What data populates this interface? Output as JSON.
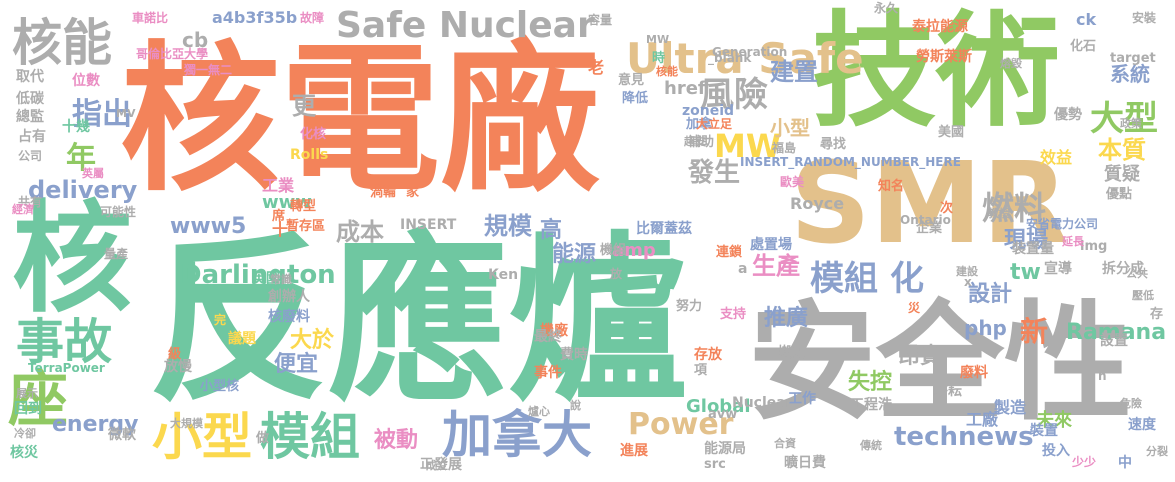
{
  "palette": {
    "orange": "#f3835a",
    "green": "#90c963",
    "teal": "#6fc7a1",
    "tan": "#e3c18b",
    "gray": "#adadad",
    "blue": "#8aa0cc",
    "yellow": "#fbd84e",
    "pink": "#ea8ec3"
  },
  "words": [
    {
      "text": "核電廠",
      "color": "orange"
    },
    {
      "text": "技術",
      "color": "green"
    },
    {
      "text": "反應爐",
      "color": "teal"
    },
    {
      "text": "SMR",
      "color": "tan"
    },
    {
      "text": "安全性",
      "color": "gray"
    },
    {
      "text": "核",
      "color": "teal"
    },
    {
      "text": "核能",
      "color": "gray"
    },
    {
      "text": "Safe Nuclear",
      "color": "gray"
    },
    {
      "text": "Ultra Safe",
      "color": "tan"
    },
    {
      "text": "事故",
      "color": "teal"
    },
    {
      "text": "座",
      "color": "green"
    },
    {
      "text": "小型",
      "color": "yellow"
    },
    {
      "text": "模組",
      "color": "teal"
    },
    {
      "text": "加拿大",
      "color": "blue"
    },
    {
      "text": "模組",
      "color": "blue"
    },
    {
      "text": "化",
      "color": "blue"
    },
    {
      "text": "Darlington",
      "color": "teal"
    },
    {
      "text": "delivery",
      "color": "blue"
    },
    {
      "text": "燃料",
      "color": "gray"
    },
    {
      "text": "大型",
      "color": "green"
    },
    {
      "text": "MW",
      "color": "yellow"
    },
    {
      "text": "Power",
      "color": "tan"
    },
    {
      "text": "technews",
      "color": "blue"
    },
    {
      "text": "energy",
      "color": "blue"
    },
    {
      "text": "指出",
      "color": "blue"
    },
    {
      "text": "年",
      "color": "green"
    },
    {
      "text": "風險",
      "color": "gray"
    },
    {
      "text": "建置",
      "color": "blue"
    },
    {
      "text": "發生",
      "color": "gray"
    },
    {
      "text": "成本",
      "color": "gray"
    },
    {
      "text": "規模",
      "color": "blue"
    },
    {
      "text": "www5",
      "color": "blue"
    },
    {
      "text": "生產",
      "color": "pink"
    },
    {
      "text": "推廣",
      "color": "blue"
    },
    {
      "text": "昂貴",
      "color": "gray"
    },
    {
      "text": "設計",
      "color": "blue"
    },
    {
      "text": "新",
      "color": "orange"
    },
    {
      "text": "Ramana",
      "color": "teal"
    },
    {
      "text": "失控",
      "color": "green"
    },
    {
      "text": "被動",
      "color": "pink"
    },
    {
      "text": "Global",
      "color": "teal"
    },
    {
      "text": "便宜",
      "color": "blue"
    },
    {
      "text": "大於",
      "color": "yellow"
    },
    {
      "text": "本質",
      "color": "yellow"
    },
    {
      "text": "現場",
      "color": "blue"
    },
    {
      "text": "php",
      "color": "blue"
    },
    {
      "text": "tw",
      "color": "teal"
    },
    {
      "text": "系統",
      "color": "blue"
    },
    {
      "text": "質疑",
      "color": "gray"
    },
    {
      "text": "amp",
      "color": "pink"
    },
    {
      "text": "小型",
      "color": "tan"
    },
    {
      "text": "更",
      "color": "gray"
    },
    {
      "text": "www",
      "color": "teal"
    },
    {
      "text": "工業",
      "color": "pink"
    },
    {
      "text": "能源",
      "color": "blue"
    },
    {
      "text": "高",
      "color": "blue"
    },
    {
      "text": "未來",
      "color": "green"
    },
    {
      "text": "工廠",
      "color": "blue"
    },
    {
      "text": "製造",
      "color": "blue"
    },
    {
      "text": "Royce",
      "color": "gray"
    },
    {
      "text": "Rolls",
      "color": "yellow"
    },
    {
      "text": "cb",
      "color": "gray"
    },
    {
      "text": "a4b3f35b",
      "color": "blue"
    },
    {
      "text": "車諾比",
      "color": "pink"
    },
    {
      "text": "故障",
      "color": "pink"
    },
    {
      "text": "泰拉能源",
      "color": "orange"
    },
    {
      "text": "勞斯萊斯",
      "color": "orange"
    },
    {
      "text": "ck",
      "color": "blue"
    },
    {
      "text": "安裝",
      "color": "gray"
    },
    {
      "text": "target",
      "color": "gray"
    },
    {
      "text": "href",
      "color": "gray"
    },
    {
      "text": "zoneid",
      "color": "blue"
    },
    {
      "text": "INSERT_RANDOM_NUMBER_HERE",
      "color": "blue"
    },
    {
      "text": "效益",
      "color": "yellow"
    },
    {
      "text": "優勢",
      "color": "gray"
    },
    {
      "text": "占有",
      "color": "gray"
    },
    {
      "text": "公司",
      "color": "gray"
    },
    {
      "text": "十幾",
      "color": "teal"
    },
    {
      "text": "取代",
      "color": "gray"
    },
    {
      "text": "位數",
      "color": "pink"
    },
    {
      "text": "低碳",
      "color": "gray"
    },
    {
      "text": "總監",
      "color": "gray"
    },
    {
      "text": "處置場",
      "color": "blue"
    },
    {
      "text": "連鎖",
      "color": "orange"
    },
    {
      "text": "比爾蓋茲",
      "color": "blue"
    },
    {
      "text": "裝置量",
      "color": "gray"
    },
    {
      "text": "宣導",
      "color": "gray"
    },
    {
      "text": "拆分成",
      "color": "gray"
    },
    {
      "text": "英國",
      "color": "teal"
    },
    {
      "text": "創辦人",
      "color": "gray"
    },
    {
      "text": "核廢料",
      "color": "blue"
    },
    {
      "text": "議題",
      "color": "yellow"
    },
    {
      "text": "機廠",
      "color": "orange"
    },
    {
      "text": "最終",
      "color": "gray"
    },
    {
      "text": "費時",
      "color": "gray"
    },
    {
      "text": "事件",
      "color": "orange"
    },
    {
      "text": "存放",
      "color": "orange"
    },
    {
      "text": "搬去",
      "color": "gray"
    },
    {
      "text": "廢料",
      "color": "orange"
    },
    {
      "text": "耕耘",
      "color": "gray"
    },
    {
      "text": "工作",
      "color": "blue"
    },
    {
      "text": "工程浩",
      "color": "gray"
    },
    {
      "text": "進展",
      "color": "orange"
    },
    {
      "text": "能源局",
      "color": "gray"
    },
    {
      "text": "曠日費",
      "color": "gray"
    },
    {
      "text": "投入",
      "color": "blue"
    },
    {
      "text": "少少",
      "color": "pink"
    },
    {
      "text": "中",
      "color": "blue"
    },
    {
      "text": "速度",
      "color": "blue"
    },
    {
      "text": "裝置",
      "color": "blue"
    },
    {
      "text": "設置",
      "color": "gray"
    },
    {
      "text": "核災",
      "color": "teal"
    },
    {
      "text": "回到",
      "color": "teal"
    },
    {
      "text": "TerraPower",
      "color": "teal"
    },
    {
      "text": "放慢",
      "color": "gray"
    },
    {
      "text": "小型核",
      "color": "blue"
    },
    {
      "text": "微軟",
      "color": "gray"
    },
    {
      "text": "發展",
      "color": "gray"
    },
    {
      "text": "src",
      "color": "gray"
    },
    {
      "text": "avw",
      "color": "gray"
    },
    {
      "text": "Nuclear",
      "color": "gray"
    },
    {
      "text": "Ken",
      "color": "gray"
    },
    {
      "text": "INSERT",
      "color": "gray"
    },
    {
      "text": "機組",
      "color": "gray"
    },
    {
      "text": "轉型",
      "color": "orange"
    },
    {
      "text": "渦輪",
      "color": "orange"
    },
    {
      "text": "家",
      "color": "orange"
    },
    {
      "text": "暫存區",
      "color": "orange"
    },
    {
      "text": "加拿",
      "color": "blue"
    },
    {
      "text": "補助",
      "color": "gray"
    },
    {
      "text": "福島",
      "color": "gray"
    },
    {
      "text": "尋找",
      "color": "gray"
    },
    {
      "text": "美國",
      "color": "gray"
    },
    {
      "text": "知名",
      "color": "orange"
    },
    {
      "text": "次",
      "color": "orange"
    },
    {
      "text": "企業",
      "color": "gray"
    },
    {
      "text": "永久",
      "color": "gray"
    },
    {
      "text": "化石",
      "color": "gray"
    },
    {
      "text": "意見",
      "color": "gray"
    },
    {
      "text": "降低",
      "color": "blue"
    },
    {
      "text": "時",
      "color": "teal"
    },
    {
      "text": "老",
      "color": "orange"
    },
    {
      "text": "席",
      "color": "orange"
    },
    {
      "text": "容量",
      "color": "gray"
    },
    {
      "text": "可能性",
      "color": "gray"
    },
    {
      "text": "量產",
      "color": "gray"
    },
    {
      "text": "共有",
      "color": "gray"
    },
    {
      "text": "大立足",
      "color": "orange"
    },
    {
      "text": "歐美",
      "color": "pink"
    },
    {
      "text": "努力",
      "color": "gray"
    },
    {
      "text": "支持",
      "color": "pink"
    },
    {
      "text": "化核",
      "color": "pink"
    },
    {
      "text": "項",
      "color": "gray"
    },
    {
      "text": "img",
      "color": "gray"
    },
    {
      "text": "優點",
      "color": "gray"
    },
    {
      "text": "哥倫比亞大學",
      "color": "pink"
    },
    {
      "text": "獨一無二",
      "color": "pink"
    },
    {
      "text": "Generation",
      "color": "gray"
    },
    {
      "text": "安省電力公司",
      "color": "blue"
    },
    {
      "text": "Ontario",
      "color": "gray"
    },
    {
      "text": "_blank",
      "color": "gray"
    },
    {
      "text": "x",
      "color": "gray"
    },
    {
      "text": "n",
      "color": "gray"
    },
    {
      "text": "a",
      "color": "gray"
    },
    {
      "text": "十",
      "color": "orange"
    },
    {
      "text": "放",
      "color": "gray"
    },
    {
      "text": "災",
      "color": "orange"
    },
    {
      "text": "完",
      "color": "yellow"
    },
    {
      "text": "級",
      "color": "orange"
    },
    {
      "text": "做",
      "color": "gray"
    },
    {
      "text": "存",
      "color": "gray"
    },
    {
      "text": "正",
      "color": "gray"
    },
    {
      "text": "成立",
      "color": "gray"
    },
    {
      "text": "說",
      "color": "gray"
    },
    {
      "text": "常識",
      "color": "gray"
    },
    {
      "text": "建設",
      "color": "gray"
    },
    {
      "text": "公共",
      "color": "gray"
    },
    {
      "text": "教授",
      "color": "gray"
    },
    {
      "text": "延長",
      "color": "pink"
    },
    {
      "text": "壓低",
      "color": "gray"
    },
    {
      "text": "展示",
      "color": "gray"
    },
    {
      "text": "冷卻",
      "color": "gray"
    },
    {
      "text": "經濟",
      "color": "pink"
    },
    {
      "text": "英屬",
      "color": "pink"
    },
    {
      "text": "MV",
      "color": "gray"
    },
    {
      "text": "傳統",
      "color": "gray"
    },
    {
      "text": "合資",
      "color": "gray"
    },
    {
      "text": "爐心",
      "color": "gray"
    },
    {
      "text": "大規模",
      "color": "gray"
    },
    {
      "text": "危險",
      "color": "gray"
    },
    {
      "text": "分裂",
      "color": "gray"
    },
    {
      "text": "MW",
      "color": "gray"
    },
    {
      "text": "超支",
      "color": "gray"
    },
    {
      "text": "核能",
      "color": "orange"
    },
    {
      "text": "熔毀",
      "color": "gray"
    },
    {
      "text": "政策",
      "color": "gray"
    }
  ]
}
